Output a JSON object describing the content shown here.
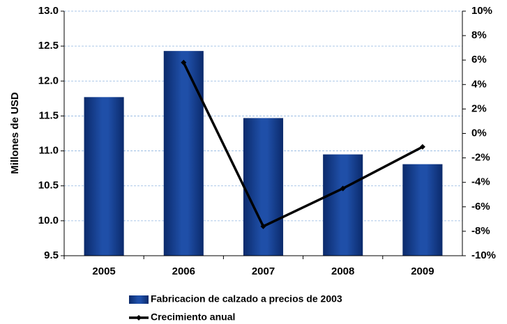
{
  "chart_data": {
    "type": "combo",
    "y_label": "Millones de USD",
    "categories": [
      "2005",
      "2006",
      "2007",
      "2008",
      "2009"
    ],
    "series": [
      {
        "name": "Fabricacion de calzado a precios de 2003",
        "type": "bar",
        "color": "#1f4fa8",
        "values": [
          11.77,
          12.43,
          11.47,
          10.95,
          10.81
        ]
      },
      {
        "name": "Crecimiento anual",
        "type": "line",
        "axis": "y2",
        "color": "#000000",
        "values": [
          null,
          5.8,
          -7.6,
          -4.5,
          -1.1
        ]
      }
    ],
    "ylim": [
      9.5,
      13.0
    ],
    "yticks": [
      9.5,
      {
        "value": 10,
        "label": "10.0"
      },
      10.5,
      {
        "value": 11,
        "label": "11.0"
      },
      11.5,
      {
        "value": 12,
        "label": "12.0"
      },
      12.5,
      {
        "value": 13,
        "label": "13.0"
      }
    ],
    "y2lim": [
      -10,
      10
    ],
    "y2ticks": [
      {
        "value": -10,
        "label": "-10%"
      },
      {
        "value": -8,
        "label": "-8%"
      },
      {
        "value": -6,
        "label": "-6%"
      },
      {
        "value": -4,
        "label": "-4%"
      },
      {
        "value": -2,
        "label": "-2%"
      },
      {
        "value": 0,
        "label": "0%"
      },
      {
        "value": 2,
        "label": "2%"
      },
      {
        "value": 4,
        "label": "4%"
      },
      {
        "value": 6,
        "label": "6%"
      },
      {
        "value": 8,
        "label": "8%"
      },
      {
        "value": 10,
        "label": "10%"
      }
    ],
    "grid": true
  }
}
